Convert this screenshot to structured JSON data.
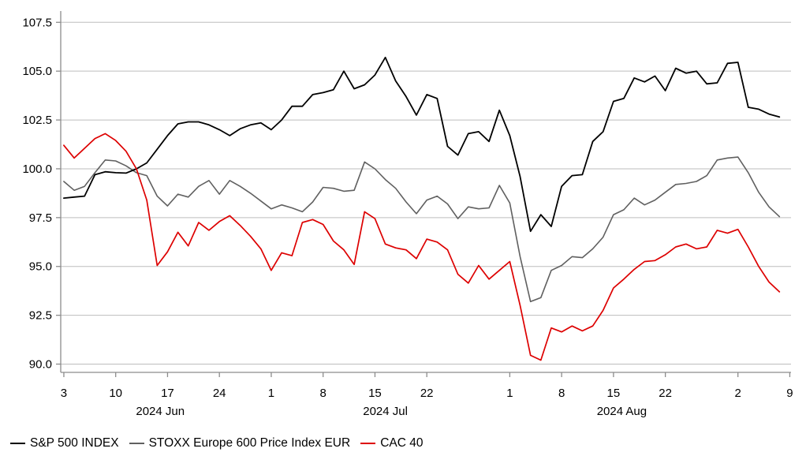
{
  "page": {
    "background": "#ffffff"
  },
  "chart_data": {
    "type": "line",
    "title": "",
    "xlabel": "",
    "ylabel": "",
    "grid": "horizontal",
    "legend_position": "bottom-left",
    "style": {
      "grid_color": "#bdbdbd",
      "axis_color": "#8c8c8c",
      "text_color": "#000000",
      "background": "#ffffff"
    },
    "y_axis": {
      "ticks": [
        90.0,
        92.5,
        95.0,
        97.5,
        100.0,
        102.5,
        105.0,
        107.5
      ],
      "tick_labels": [
        "90.0",
        "92.5",
        "95.0",
        "97.5",
        "100.0",
        "102.5",
        "105.0",
        "107.5"
      ],
      "range": [
        89.6,
        108.1
      ]
    },
    "x_axis": {
      "tick_positions": [
        0,
        5,
        10,
        15,
        20,
        25,
        30,
        35,
        43,
        48,
        53,
        58,
        65,
        70
      ],
      "tick_labels": [
        "3",
        "10",
        "17",
        "24",
        "1",
        "8",
        "15",
        "22",
        "1",
        "8",
        "15",
        "22",
        "2",
        "9"
      ],
      "month_labels": [
        {
          "index": 9.3,
          "label": "2024 Jun"
        },
        {
          "index": 31.0,
          "label": "2024 Jul"
        },
        {
          "index": 53.8,
          "label": "2024 Aug"
        }
      ]
    },
    "x": [
      "Jun 3",
      "Jun 4",
      "Jun 5",
      "Jun 6",
      "Jun 7",
      "Jun 10",
      "Jun 11",
      "Jun 12",
      "Jun 13",
      "Jun 14",
      "Jun 17",
      "Jun 18",
      "Jun 19",
      "Jun 20",
      "Jun 21",
      "Jun 24",
      "Jun 25",
      "Jun 26",
      "Jun 27",
      "Jun 28",
      "Jul 1",
      "Jul 2",
      "Jul 3",
      "Jul 4",
      "Jul 5",
      "Jul 8",
      "Jul 9",
      "Jul 10",
      "Jul 11",
      "Jul 12",
      "Jul 15",
      "Jul 16",
      "Jul 17",
      "Jul 18",
      "Jul 19",
      "Jul 22",
      "Jul 23",
      "Jul 24",
      "Jul 25",
      "Jul 26",
      "Jul 29",
      "Jul 30",
      "Jul 31",
      "Aug 1",
      "Aug 2",
      "Aug 5",
      "Aug 6",
      "Aug 7",
      "Aug 8",
      "Aug 9",
      "Aug 12",
      "Aug 13",
      "Aug 14",
      "Aug 15",
      "Aug 16",
      "Aug 19",
      "Aug 20",
      "Aug 21",
      "Aug 22",
      "Aug 23",
      "Aug 26",
      "Aug 27",
      "Aug 28",
      "Aug 29",
      "Aug 30",
      "Sep 2",
      "Sep 3",
      "Sep 4",
      "Sep 5",
      "Sep 6"
    ],
    "series": [
      {
        "name": "S&P 500 INDEX",
        "color": "#000000",
        "values": [
          98.5,
          98.55,
          98.6,
          99.7,
          99.85,
          99.8,
          99.78,
          100.0,
          100.3,
          101.0,
          101.7,
          102.3,
          102.4,
          102.4,
          102.25,
          102.0,
          101.7,
          102.05,
          102.25,
          102.35,
          102.0,
          102.5,
          103.2,
          103.2,
          103.8,
          103.9,
          104.05,
          105.0,
          104.1,
          104.3,
          104.8,
          105.7,
          104.5,
          103.7,
          102.75,
          103.8,
          103.6,
          101.15,
          100.7,
          101.8,
          101.9,
          101.4,
          103.0,
          101.7,
          99.6,
          96.8,
          97.65,
          97.05,
          99.1,
          99.65,
          99.7,
          101.4,
          101.9,
          103.45,
          103.6,
          104.65,
          104.45,
          104.75,
          104.0,
          105.15,
          104.9,
          105.0,
          104.35,
          104.4,
          105.4,
          105.45,
          103.15,
          103.05,
          102.8,
          102.65
        ]
      },
      {
        "name": "STOXX Europe 600 Price Index EUR",
        "color": "#606060",
        "values": [
          99.35,
          98.9,
          99.1,
          99.8,
          100.45,
          100.4,
          100.15,
          99.8,
          99.65,
          98.6,
          98.1,
          98.7,
          98.55,
          99.1,
          99.4,
          98.7,
          99.4,
          99.1,
          98.75,
          98.35,
          97.95,
          98.15,
          98.0,
          97.8,
          98.3,
          99.05,
          99.0,
          98.85,
          98.9,
          100.35,
          100.0,
          99.45,
          99.0,
          98.3,
          97.7,
          98.4,
          98.6,
          98.2,
          97.45,
          98.05,
          97.95,
          98.0,
          99.15,
          98.25,
          95.5,
          93.2,
          93.4,
          94.8,
          95.05,
          95.5,
          95.45,
          95.9,
          96.5,
          97.65,
          97.9,
          98.5,
          98.15,
          98.4,
          98.8,
          99.2,
          99.25,
          99.35,
          99.65,
          100.45,
          100.55,
          100.6,
          99.8,
          98.8,
          98.05,
          97.55
        ]
      },
      {
        "name": "CAC 40",
        "color": "#dd0000",
        "values": [
          101.2,
          100.55,
          101.05,
          101.55,
          101.8,
          101.45,
          100.9,
          100.0,
          98.4,
          95.05,
          95.75,
          96.75,
          96.05,
          97.25,
          96.85,
          97.3,
          97.6,
          97.1,
          96.55,
          95.9,
          94.8,
          95.7,
          95.55,
          97.25,
          97.4,
          97.15,
          96.3,
          95.85,
          95.1,
          97.8,
          97.45,
          96.15,
          95.95,
          95.85,
          95.4,
          96.4,
          96.25,
          95.85,
          94.6,
          94.15,
          95.05,
          94.35,
          94.8,
          95.25,
          93.0,
          90.45,
          90.2,
          91.85,
          91.65,
          91.95,
          91.7,
          91.95,
          92.75,
          93.9,
          94.35,
          94.85,
          95.25,
          95.3,
          95.6,
          96.0,
          96.15,
          95.9,
          96.0,
          96.85,
          96.7,
          96.9,
          96.0,
          95.0,
          94.2,
          93.7
        ]
      }
    ]
  }
}
